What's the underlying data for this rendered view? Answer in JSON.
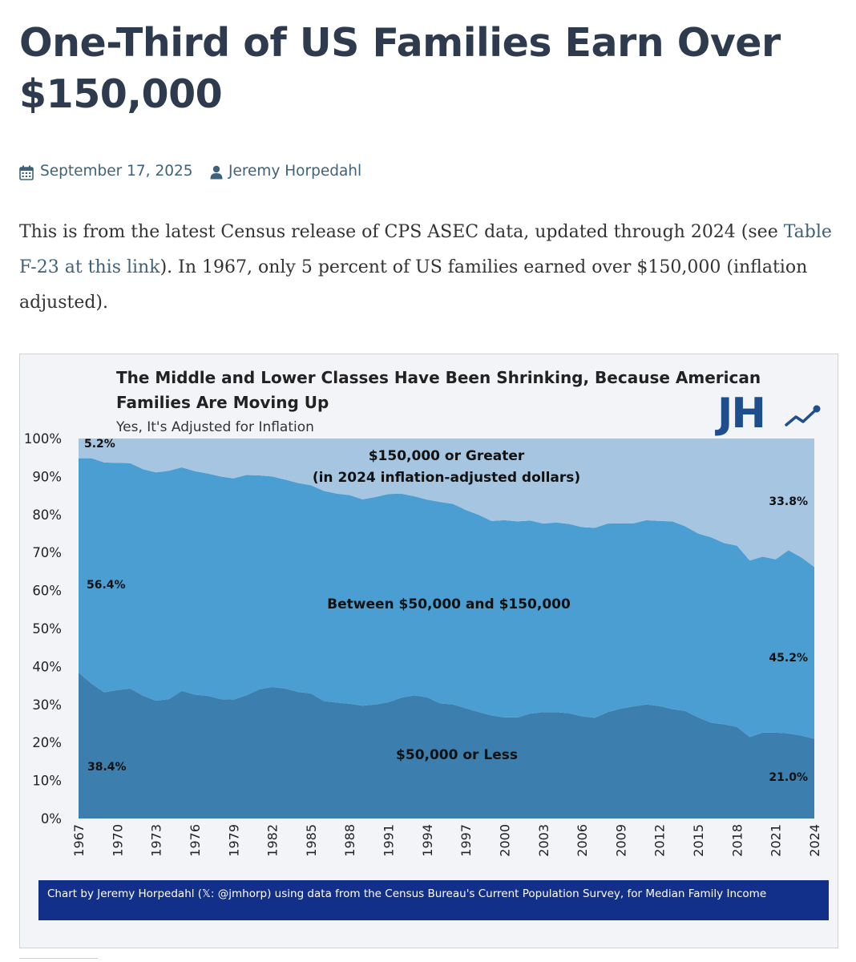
{
  "article": {
    "title": "One-Third of US Families Earn Over $150,000",
    "date": "September 17, 2025",
    "author": "Jeremy Horpedahl",
    "intro": {
      "text_before_link": "This is from the latest Census release of CPS ASEC data, updated through 2024 (see ",
      "link_text": "Table F-23 at this link",
      "text_after_link": "). In 1967, only 5 percent of US families earned over $150,000 (inflation adjusted)."
    }
  },
  "icons": {
    "date": "calendar-icon",
    "author": "user-icon"
  },
  "logo": {
    "text": "JH"
  },
  "colors": {
    "under_50k": "#3c7ead",
    "between_50k_150k": "#4a9ed1",
    "over_150k": "#a6c5e1",
    "title_text": "#2e3b4e",
    "link": "#3e627a",
    "footer_banner": "#12308a",
    "logo": "#1f4e8c"
  },
  "chart_data": {
    "type": "area",
    "stacked": true,
    "title": "The Middle and Lower Classes Have Been Shrinking, Because American Families Are Moving Up",
    "subtitle": "Yes, It's Adjusted for Inflation",
    "source": "Chart by Jeremy Horpedahl (𝕏: @jmhorp) using data from the Census Bureau's Current Population Survey, for Median Family Income",
    "ylim": [
      0,
      100
    ],
    "yticks": [
      "0%",
      "10%",
      "20%",
      "30%",
      "40%",
      "50%",
      "60%",
      "70%",
      "80%",
      "90%",
      "100%"
    ],
    "xticks": [
      "1967",
      "1970",
      "1973",
      "1976",
      "1979",
      "1982",
      "1985",
      "1988",
      "1991",
      "1994",
      "1997",
      "2000",
      "2003",
      "2006",
      "2009",
      "2012",
      "2015",
      "2018",
      "2021",
      "2024"
    ],
    "x": [
      1967,
      1968,
      1969,
      1970,
      1971,
      1972,
      1973,
      1974,
      1975,
      1976,
      1977,
      1978,
      1979,
      1980,
      1981,
      1982,
      1983,
      1984,
      1985,
      1986,
      1987,
      1988,
      1989,
      1990,
      1991,
      1992,
      1993,
      1994,
      1995,
      1996,
      1997,
      1998,
      1999,
      2000,
      2001,
      2002,
      2003,
      2004,
      2005,
      2006,
      2007,
      2008,
      2009,
      2010,
      2011,
      2012,
      2013,
      2014,
      2015,
      2016,
      2017,
      2018,
      2019,
      2020,
      2021,
      2022,
      2023,
      2024
    ],
    "series": [
      {
        "name": "$50,000 or Less",
        "label_lines": [
          "$50,000 or Less"
        ],
        "values": [
          38.4,
          35.5,
          33.2,
          33.8,
          34.2,
          32.3,
          31.0,
          31.4,
          33.6,
          32.6,
          32.3,
          31.4,
          31.3,
          32.4,
          34.0,
          34.6,
          34.2,
          33.3,
          32.9,
          30.9,
          30.5,
          30.2,
          29.7,
          30.0,
          30.6,
          31.8,
          32.4,
          31.9,
          30.3,
          30.0,
          29.0,
          28.0,
          27.1,
          26.6,
          26.6,
          27.6,
          28.0,
          28.0,
          27.7,
          26.9,
          26.5,
          28.0,
          28.9,
          29.5,
          30.0,
          29.6,
          28.8,
          28.3,
          26.6,
          25.2,
          24.8,
          24.1,
          21.4,
          22.6,
          22.6,
          22.4,
          21.8,
          21.0
        ],
        "end_labels": [
          "38.4%",
          "21.0%"
        ]
      },
      {
        "name": "Between $50,000 and $150,000",
        "label_lines": [
          "Between $50,000 and $150,000"
        ],
        "values": [
          56.4,
          59.3,
          60.5,
          59.8,
          59.3,
          59.6,
          60.1,
          60.1,
          58.8,
          58.8,
          58.5,
          58.6,
          58.2,
          58.0,
          56.3,
          55.4,
          55.0,
          55.0,
          54.8,
          55.3,
          55.0,
          54.9,
          54.3,
          54.6,
          54.8,
          53.7,
          52.4,
          52.0,
          53.0,
          52.8,
          52.2,
          51.9,
          51.2,
          51.9,
          51.6,
          50.8,
          49.6,
          49.9,
          49.8,
          49.8,
          50.0,
          49.6,
          48.8,
          48.2,
          48.5,
          48.7,
          49.4,
          48.6,
          48.4,
          48.8,
          47.7,
          47.7,
          46.5,
          46.3,
          45.6,
          48.2,
          46.9,
          45.2
        ],
        "end_labels": [
          "56.4%",
          "45.2%"
        ]
      },
      {
        "name": "$150,000 or Greater (in 2024 inflation-adjusted dollars)",
        "label_lines": [
          "$150,000 or Greater",
          "(in 2024 inflation-adjusted dollars)"
        ],
        "values": [
          5.2,
          5.2,
          6.3,
          6.4,
          6.5,
          8.1,
          8.9,
          8.5,
          7.6,
          8.6,
          9.2,
          10.0,
          10.5,
          9.6,
          9.7,
          10.0,
          10.8,
          11.7,
          12.3,
          13.8,
          14.5,
          14.9,
          16.0,
          15.4,
          14.6,
          14.5,
          15.2,
          16.1,
          16.7,
          17.2,
          18.8,
          20.1,
          21.7,
          21.5,
          21.8,
          21.6,
          22.4,
          22.1,
          22.5,
          23.3,
          23.5,
          22.4,
          22.3,
          22.3,
          21.5,
          21.7,
          21.8,
          23.1,
          25.0,
          26.0,
          27.5,
          28.2,
          32.1,
          31.1,
          31.8,
          29.4,
          31.3,
          33.8
        ],
        "end_labels": [
          "5.2%",
          "33.8%"
        ]
      }
    ]
  }
}
